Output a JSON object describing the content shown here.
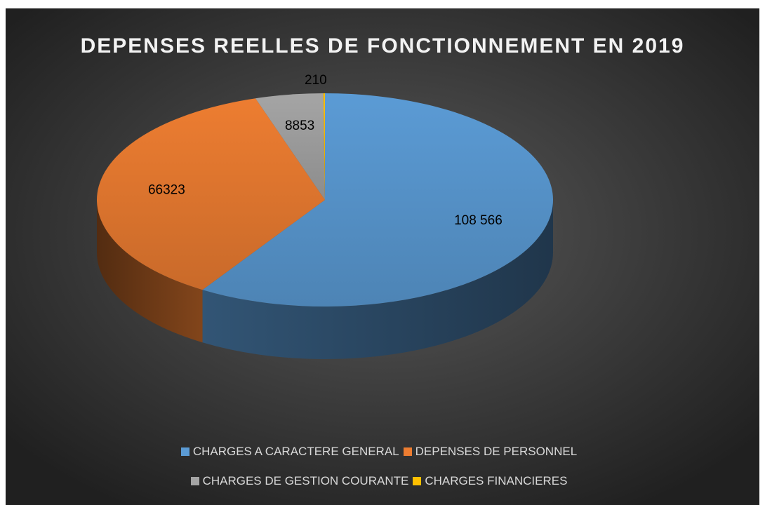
{
  "chart_data": {
    "type": "pie3d",
    "title": "DEPENSES REELLES DE FONCTIONNEMENT EN 2019",
    "categories": [
      "CHARGES A CARACTERE GENERAL",
      "DEPENSES DE PERSONNEL",
      "CHARGES DE GESTION COURANTE",
      "CHARGES FINANCIERES"
    ],
    "values": [
      108566,
      66323,
      8853,
      210
    ],
    "value_labels": [
      "108 566",
      "66323",
      "8853",
      "210"
    ],
    "colors": [
      "#5b9bd5",
      "#ed7d31",
      "#a5a5a5",
      "#ffc000"
    ],
    "legend": "bottom"
  }
}
